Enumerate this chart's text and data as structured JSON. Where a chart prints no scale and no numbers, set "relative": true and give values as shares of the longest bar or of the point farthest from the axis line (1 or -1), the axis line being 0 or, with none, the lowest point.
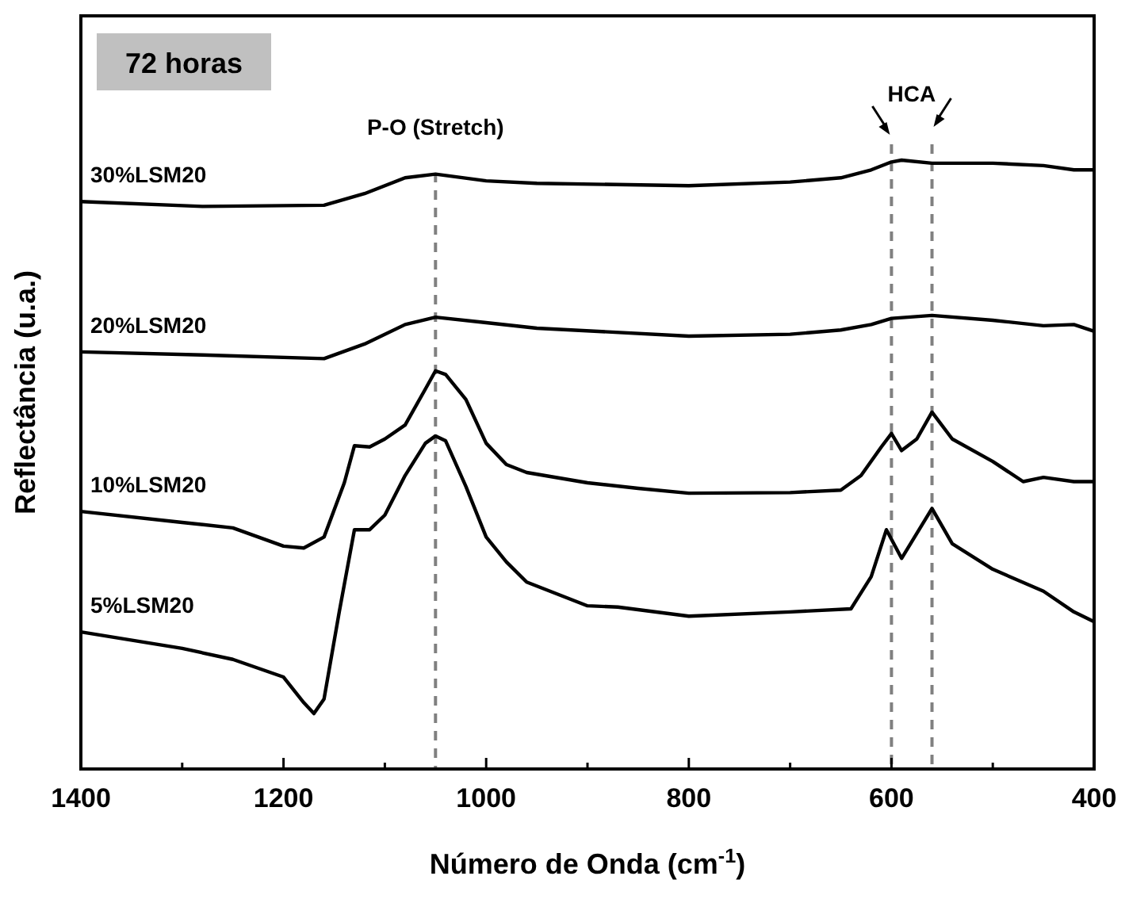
{
  "chart_data": {
    "type": "line",
    "relative": true,
    "xlabel": "Número de Onda (cm$^{-1}$)",
    "ylabel": "Reflectância (u.a.)",
    "xlim": [
      1400,
      400
    ],
    "xticks": [
      1400,
      {
        "value": 1300,
        "label": null
      },
      1200,
      {
        "value": 1100,
        "label": null
      },
      1000,
      {
        "value": 900,
        "label": null
      },
      800,
      {
        "value": 700,
        "label": null
      },
      600,
      {
        "value": 500,
        "label": null
      },
      400
    ],
    "legend": false,
    "grid": false,
    "annotations": [
      "72 horas",
      "P-O (Stretch)",
      "HCA"
    ],
    "ref_lines": [
      {
        "axis": "x",
        "value": 1050,
        "color": "#808080",
        "line_style": "dashed"
      },
      {
        "axis": "x",
        "value": 600,
        "color": "#808080",
        "line_style": "dashed"
      },
      {
        "axis": "x",
        "value": 560,
        "color": "#808080",
        "line_style": "dashed"
      }
    ],
    "series": [
      {
        "name": "30%LSM20",
        "color": "#000000",
        "x": [
          1400,
          1280,
          1160,
          1120,
          1080,
          1050,
          1000,
          950,
          800,
          700,
          650,
          620,
          600,
          590,
          560,
          500,
          450,
          420,
          400
        ],
        "values": [
          0.932,
          0.924,
          0.926,
          0.945,
          0.971,
          0.977,
          0.966,
          0.962,
          0.958,
          0.964,
          0.971,
          0.984,
          0.997,
          1,
          0.995,
          0.995,
          0.991,
          0.984,
          0.984
        ]
      },
      {
        "name": "20%LSM20",
        "color": "#000000",
        "x": [
          1400,
          1280,
          1160,
          1120,
          1080,
          1050,
          1000,
          950,
          800,
          700,
          650,
          620,
          600,
          560,
          500,
          450,
          420,
          400
        ],
        "values": [
          0.685,
          0.68,
          0.674,
          0.698,
          0.73,
          0.742,
          0.733,
          0.724,
          0.711,
          0.714,
          0.721,
          0.73,
          0.74,
          0.745,
          0.737,
          0.728,
          0.73,
          0.719
        ]
      },
      {
        "name": "10%LSM20",
        "color": "#000000",
        "x": [
          1400,
          1300,
          1250,
          1200,
          1180,
          1160,
          1140,
          1130,
          1115,
          1100,
          1080,
          1060,
          1050,
          1040,
          1020,
          1000,
          980,
          960,
          900,
          850,
          800,
          700,
          650,
          630,
          610,
          600,
          590,
          575,
          560,
          540,
          500,
          470,
          450,
          420,
          400
        ],
        "values": [
          0.423,
          0.405,
          0.396,
          0.366,
          0.363,
          0.381,
          0.47,
          0.531,
          0.529,
          0.542,
          0.565,
          0.624,
          0.654,
          0.648,
          0.607,
          0.535,
          0.5,
          0.487,
          0.47,
          0.461,
          0.453,
          0.454,
          0.458,
          0.482,
          0.529,
          0.551,
          0.523,
          0.542,
          0.586,
          0.542,
          0.505,
          0.472,
          0.479,
          0.472,
          0.472
        ]
      },
      {
        "name": "5%LSM20",
        "color": "#000000",
        "x": [
          1400,
          1300,
          1250,
          1200,
          1180,
          1170,
          1160,
          1145,
          1130,
          1115,
          1100,
          1080,
          1060,
          1050,
          1040,
          1020,
          1000,
          980,
          960,
          900,
          870,
          800,
          700,
          640,
          620,
          605,
          590,
          560,
          540,
          500,
          450,
          420,
          400
        ],
        "values": [
          0.225,
          0.198,
          0.18,
          0.151,
          0.109,
          0.091,
          0.115,
          0.258,
          0.393,
          0.393,
          0.417,
          0.482,
          0.535,
          0.547,
          0.539,
          0.464,
          0.381,
          0.34,
          0.307,
          0.268,
          0.266,
          0.251,
          0.258,
          0.263,
          0.316,
          0.393,
          0.346,
          0.428,
          0.37,
          0.328,
          0.292,
          0.258,
          0.242
        ]
      }
    ]
  }
}
